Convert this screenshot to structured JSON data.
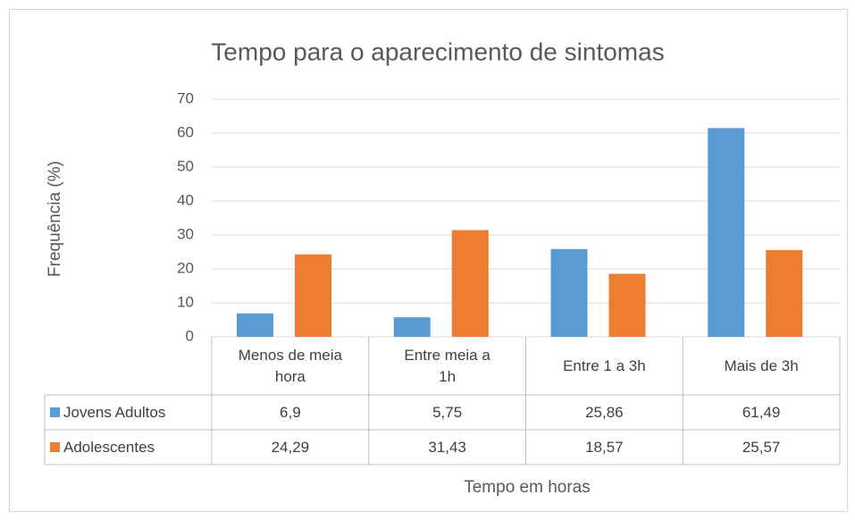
{
  "chart_data": {
    "type": "bar",
    "title": "Tempo para o aparecimento de sintomas",
    "x_label": "Tempo em horas",
    "y_label": "Frequência (%)",
    "categories": [
      "Menos de meia hora",
      "Entre meia a 1h",
      "Entre 1 a 3h",
      "Mais de 3h"
    ],
    "series": [
      {
        "name": "Jovens Adultos",
        "color": "#5b9bd5",
        "values": [
          6.9,
          5.75,
          25.86,
          61.49
        ],
        "value_labels": [
          "6,9",
          "5,75",
          "25,86",
          "61,49"
        ]
      },
      {
        "name": "Adolescentes",
        "color": "#ed7d31",
        "values": [
          24.29,
          31.43,
          18.57,
          25.57
        ],
        "value_labels": [
          "24,29",
          "31,43",
          "18,57",
          "25,57"
        ]
      }
    ],
    "ylim": [
      0,
      70
    ],
    "yticks": [
      0,
      10,
      20,
      30,
      40,
      50,
      60,
      70
    ],
    "grid": true,
    "legend": "table"
  }
}
